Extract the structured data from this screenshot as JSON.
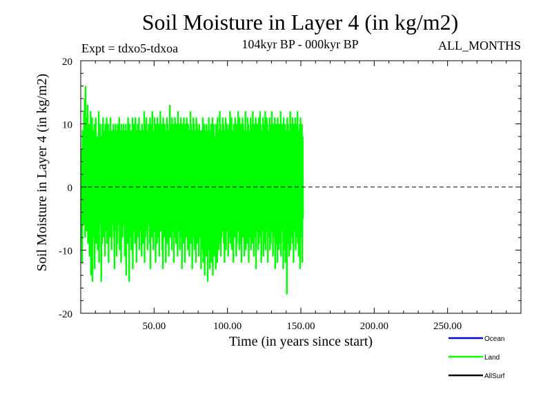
{
  "chart_data": {
    "type": "line",
    "title": "Soil Moisture in Layer 4 (in kg/m2)",
    "subtitle": "104kyr BP - 000kyr BP",
    "experiment": "Expt = tdxo5-tdxoa",
    "months": "ALL_MONTHS",
    "xlabel": "Time (in years since start)",
    "ylabel": "Soil Moisture in Layer 4 (in kg/m2)",
    "xlim": [
      0,
      300
    ],
    "ylim": [
      -20,
      20
    ],
    "x_ticks": [
      50,
      100,
      150,
      200,
      250
    ],
    "x_tick_labels": [
      "50.00",
      "100.00",
      "150.00",
      "200.00",
      "250.00"
    ],
    "y_ticks": [
      -20,
      -10,
      0,
      10,
      20
    ],
    "y_tick_labels": [
      "-20",
      "-10",
      "0",
      "10",
      "20"
    ],
    "zero_line": "dashed",
    "legend": [
      {
        "name": "Ocean",
        "color": "#0000ff"
      },
      {
        "name": "Land",
        "color": "#00ff00"
      },
      {
        "name": "AllSurf",
        "color": "#000000"
      }
    ],
    "series": [
      {
        "name": "Land",
        "color": "#00ff00",
        "x_start": 0.5,
        "x_step": 0.25,
        "values": [
          -9,
          6,
          -12,
          9,
          -4,
          7,
          -6,
          12,
          -3,
          14,
          -8,
          16,
          -2,
          11,
          -7,
          9,
          -5,
          13,
          -9,
          8,
          -3,
          10,
          -11,
          7,
          -6,
          12,
          -14,
          8,
          -5,
          11,
          -15,
          6,
          -8,
          9,
          -4,
          10,
          -13,
          7,
          -6,
          11,
          -9,
          5,
          -3,
          8,
          -10,
          6,
          -7,
          12,
          -12,
          9,
          -4,
          10,
          -6,
          8,
          -15,
          7,
          -9,
          10,
          -5,
          11,
          -8,
          9,
          -6,
          8,
          -11,
          10,
          -4,
          9,
          -7,
          11,
          -9,
          8,
          -5,
          10,
          -12,
          7,
          -6,
          9,
          -8,
          11,
          -4,
          8,
          -10,
          9,
          -6,
          7,
          -3,
          10,
          -8,
          9,
          -13,
          8,
          -7,
          10,
          -5,
          9,
          -11,
          7,
          -9,
          10,
          -6,
          8,
          -4,
          11,
          -10,
          9,
          -7,
          8,
          -12,
          10,
          -5,
          9,
          -8,
          7,
          -6,
          10,
          -4,
          8,
          -11,
          9,
          -7,
          10,
          -14,
          8,
          -5,
          9,
          -9,
          11,
          -6,
          8,
          -15,
          10,
          -8,
          7,
          -4,
          9,
          -10,
          8,
          -6,
          11,
          -13,
          9,
          -7,
          10,
          -5,
          8,
          -9,
          11,
          -6,
          9,
          -12,
          8,
          -4,
          10,
          -8,
          9,
          -6,
          11,
          -10,
          7,
          -5,
          9,
          -7,
          8,
          -11,
          10,
          -4,
          9,
          -9,
          8,
          -6,
          12,
          -12,
          9,
          -8,
          10,
          -5,
          11,
          -7,
          8,
          -10,
          9,
          -6,
          10,
          -4,
          8,
          -9,
          11,
          -13,
          9,
          -6,
          10,
          -8,
          12,
          -5,
          9,
          -10,
          8,
          -7,
          11,
          -4,
          9,
          -12,
          10,
          -6,
          8,
          -9,
          11,
          -5,
          9,
          -8,
          10,
          -11,
          8,
          -6,
          12,
          -7,
          9,
          -4,
          10,
          -10,
          8,
          -13,
          11,
          -6,
          9,
          -8,
          10,
          -5,
          8,
          -12,
          9,
          -7,
          11,
          -9,
          10,
          -4,
          8,
          -11,
          9,
          -6,
          13,
          -8,
          10,
          -5,
          9,
          -10,
          11,
          -7,
          8,
          -6,
          10,
          -12,
          9,
          -8,
          11,
          -4,
          9,
          -9,
          10,
          -6,
          8,
          -11,
          12,
          -7,
          9,
          -5,
          10,
          -10,
          8,
          -8,
          11,
          -6,
          9,
          -13,
          10,
          -4,
          8,
          -9,
          11,
          -7,
          9,
          -12,
          10,
          -5,
          8,
          -8,
          11,
          -6,
          9,
          -10,
          10,
          -7,
          8,
          -11,
          9,
          -5,
          12,
          -9,
          10,
          -6,
          8,
          -13,
          9,
          -8,
          11,
          -4,
          10,
          -10,
          8,
          -7,
          9,
          -12,
          11,
          -6,
          10,
          -9,
          8,
          -5,
          9,
          -11,
          10,
          -8,
          7,
          -6,
          9,
          -13,
          8,
          -10,
          9,
          -7,
          11,
          -12,
          8,
          -9,
          10,
          -14,
          7,
          -8,
          9,
          -11,
          10,
          -6,
          8,
          -15,
          9,
          -10,
          11,
          -7,
          8,
          -13,
          9,
          -9,
          10,
          -12,
          8,
          -8,
          11,
          -14,
          9,
          -6,
          10,
          -11,
          8,
          -9,
          7,
          -13,
          10,
          -8,
          9,
          -12,
          11,
          -7,
          8,
          -10,
          9,
          -6,
          12,
          -9,
          10,
          -11,
          8,
          -8,
          9,
          -7,
          11,
          -5,
          10,
          -9,
          8,
          -12,
          9,
          -6,
          11,
          -10,
          8,
          -7,
          10,
          -4,
          9,
          -11,
          8,
          -8,
          10,
          -6,
          12,
          -9,
          9,
          -5,
          11,
          -10,
          8,
          -7,
          9,
          -12,
          10,
          -6,
          8,
          -8,
          11,
          -4,
          9,
          -11,
          10,
          -9,
          8,
          -7,
          12,
          -6,
          9,
          -10,
          11,
          -5,
          8,
          -9,
          10,
          -12,
          9,
          -6,
          11,
          -8,
          10,
          -4,
          8,
          -11,
          9,
          -7,
          12,
          -10,
          8,
          -6,
          9,
          -9,
          11,
          -5,
          10,
          -12,
          8,
          -8,
          9,
          -7,
          11,
          -10,
          10,
          -6,
          8,
          -9,
          12,
          -4,
          9,
          -11,
          10,
          -8,
          8,
          -6,
          11,
          -13,
          9,
          -7,
          10,
          -5,
          8,
          -10,
          11,
          -9,
          9,
          -6,
          12,
          -8,
          10,
          -12,
          8,
          -7,
          9,
          -5,
          11,
          -11,
          10,
          -9,
          8,
          -6,
          12,
          -10,
          9,
          -7,
          11,
          -4,
          10,
          -12,
          8,
          -8,
          9,
          -6,
          11,
          -10,
          10,
          -9,
          8,
          -7,
          12,
          -5,
          9,
          -11,
          10,
          -8,
          8,
          -6,
          11,
          -13,
          9,
          -9,
          10,
          -7,
          8,
          -12,
          11,
          -6,
          9,
          -10,
          10,
          -5,
          8,
          -9,
          12,
          -11,
          9,
          -7,
          10,
          -6,
          8,
          -13,
          11,
          -8,
          9,
          -10,
          10,
          -12,
          8,
          -6,
          9,
          -17,
          11,
          -9,
          10,
          -7,
          8,
          -11,
          9,
          -6,
          12,
          -10,
          10,
          -8,
          8,
          -5,
          11,
          -9,
          9,
          -12,
          10,
          -7,
          8,
          -6,
          11,
          -10,
          9,
          -8,
          10,
          -5,
          12,
          -9,
          8,
          -11,
          9,
          -6,
          10,
          -13,
          11,
          -8,
          9,
          -7,
          10,
          -12,
          8,
          -5
        ]
      }
    ]
  }
}
